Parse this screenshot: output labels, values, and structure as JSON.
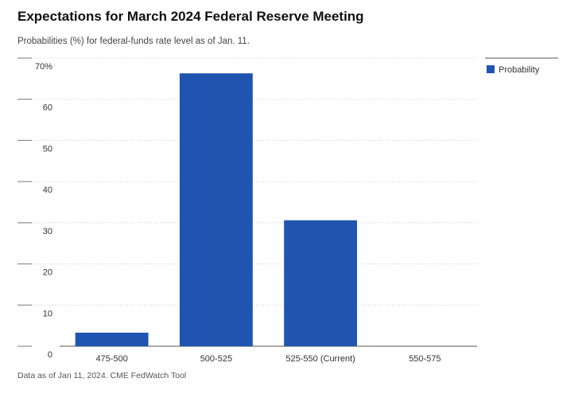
{
  "chart_data": {
    "type": "bar",
    "title": "Expectations for March 2024 Federal Reserve Meeting",
    "subtitle": "Probabilities (%) for federal-funds rate level as of Jan. 11.",
    "footnote": "Data as of Jan 11, 2024. CME FedWatch Tool",
    "categories": [
      "475-500",
      "500-525",
      "525-550 (Current)",
      "550-575"
    ],
    "series": [
      {
        "name": "Probability",
        "color": "#1f55b0",
        "values": [
          3.3,
          66.3,
          30.6,
          0
        ]
      }
    ],
    "ylim": [
      0,
      70
    ],
    "yticks": [
      0,
      10,
      20,
      30,
      40,
      50,
      60,
      {
        "value": 70,
        "label": "70%"
      }
    ],
    "grid": true,
    "legend": "right"
  }
}
